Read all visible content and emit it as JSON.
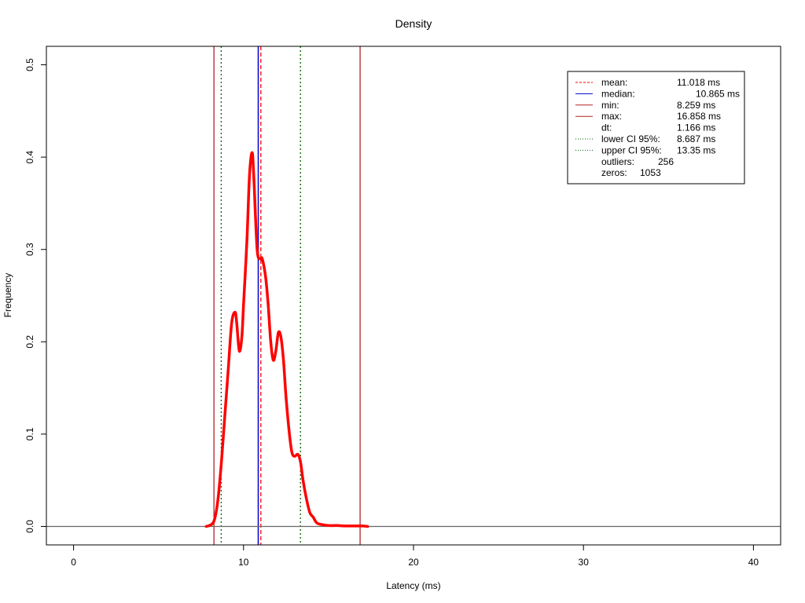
{
  "chart_data": {
    "type": "line",
    "title": "Density",
    "xlabel": "Latency (ms)",
    "ylabel": "Frequency",
    "xlim": [
      -1.6,
      41.6
    ],
    "ylim": [
      -0.02,
      0.52
    ],
    "grid": false,
    "legend_position": "top-right",
    "x_ticks": [
      0,
      10,
      20,
      30,
      40
    ],
    "y_ticks": [
      0.0,
      0.1,
      0.2,
      0.3,
      0.4,
      0.5
    ],
    "x_tick_labels": [
      "0",
      "10",
      "20",
      "30",
      "40"
    ],
    "y_tick_labels": [
      "0.0",
      "0.1",
      "0.2",
      "0.3",
      "0.4",
      "0.5"
    ],
    "baseline": {
      "y": 0,
      "color": "#666666"
    },
    "series": [
      {
        "color": "#ff0000",
        "x": [
          7.8,
          8.1,
          8.3,
          8.5,
          8.7,
          8.9,
          9.1,
          9.3,
          9.5,
          9.6,
          9.75,
          9.9,
          10.0,
          10.2,
          10.35,
          10.5,
          10.6,
          10.8,
          11.0,
          11.1,
          11.3,
          11.45,
          11.6,
          11.75,
          11.9,
          12.05,
          12.2,
          12.35,
          12.5,
          12.7,
          12.85,
          13.0,
          13.2,
          13.35,
          13.5,
          13.7,
          13.9,
          14.1,
          14.3,
          14.6,
          15.0,
          15.5,
          16.0,
          16.5,
          17.0,
          17.3
        ],
        "y": [
          0.0,
          0.002,
          0.008,
          0.03,
          0.07,
          0.12,
          0.17,
          0.22,
          0.232,
          0.22,
          0.19,
          0.205,
          0.24,
          0.31,
          0.38,
          0.405,
          0.38,
          0.3,
          0.29,
          0.29,
          0.27,
          0.24,
          0.2,
          0.18,
          0.19,
          0.21,
          0.205,
          0.18,
          0.14,
          0.1,
          0.08,
          0.076,
          0.078,
          0.07,
          0.05,
          0.03,
          0.015,
          0.01,
          0.004,
          0.002,
          0.001,
          0.001,
          0.0005,
          0.0005,
          0.0005,
          0.0
        ]
      }
    ],
    "vlines": [
      {
        "name": "mean",
        "x": 11.018,
        "color": "#ff0000",
        "dash": "dashed"
      },
      {
        "name": "median",
        "x": 10.865,
        "color": "#0000cd",
        "dash": "solid"
      },
      {
        "name": "min",
        "x": 8.259,
        "color": "#b22222",
        "dash": "solid"
      },
      {
        "name": "max",
        "x": 16.858,
        "color": "#b22222",
        "dash": "solid"
      },
      {
        "name": "lower CI 95%",
        "x": 8.687,
        "color": "#006400",
        "dash": "dotted"
      },
      {
        "name": "upper CI 95%",
        "x": 13.35,
        "color": "#006400",
        "dash": "dotted"
      }
    ],
    "legend": [
      {
        "label": "mean:",
        "value": "11.018 ms",
        "line": "dashed",
        "color": "#ff0000"
      },
      {
        "label": "median:",
        "value": "10.865 ms",
        "line": "solid",
        "color": "#0000cd"
      },
      {
        "label": "min:",
        "value": "8.259 ms",
        "line": "solid",
        "color": "#b22222"
      },
      {
        "label": "max:",
        "value": "16.858 ms",
        "line": "solid",
        "color": "#b22222"
      },
      {
        "label": "dt:",
        "value": "1.166 ms",
        "line": "none",
        "color": "#000000"
      },
      {
        "label": "lower CI 95%:",
        "value": "8.687 ms",
        "line": "dotted",
        "color": "#006400"
      },
      {
        "label": "upper CI 95%:",
        "value": "13.35 ms",
        "line": "dotted",
        "color": "#006400"
      },
      {
        "label": "outliers:",
        "value": "256",
        "line": "none",
        "color": "#000000"
      },
      {
        "label": "zeros:",
        "value": "1053",
        "line": "none",
        "color": "#000000"
      }
    ]
  }
}
